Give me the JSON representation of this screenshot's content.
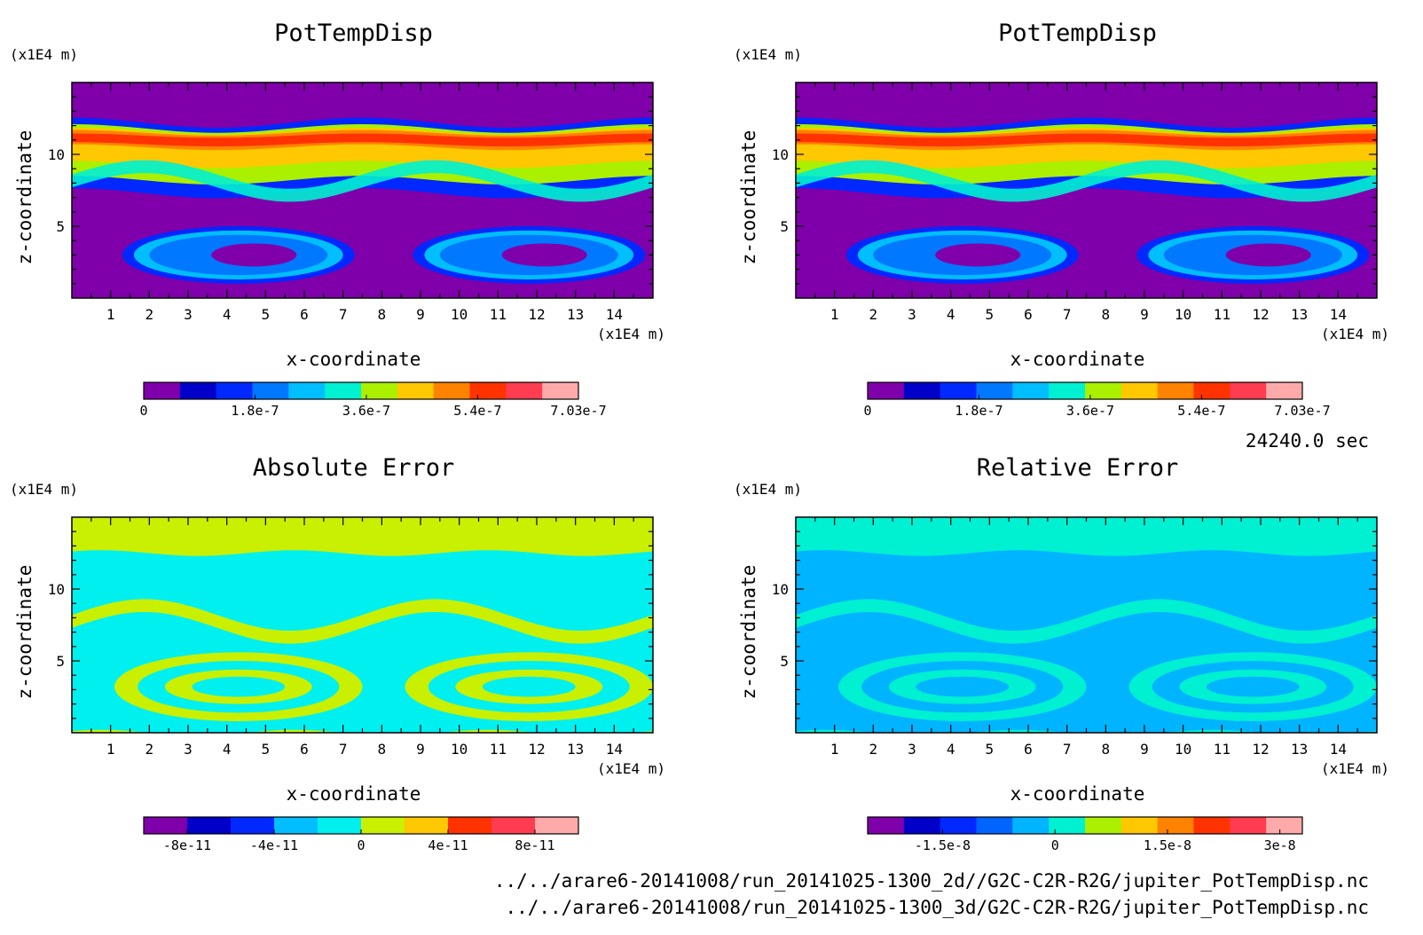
{
  "time_label": "24240.0 sec",
  "files": [
    "../../arare6-20141008/run_20141025-1300_2d//G2C-C2R-R2G/jupiter_PotTempDisp.nc",
    "../../arare6-20141008/run_20141025-1300_3d/G2C-C2R-R2G/jupiter_PotTempDisp.nc"
  ],
  "colors": {
    "potential_temperature_scale": [
      "#7f00aa",
      "#0000c8",
      "#0028ff",
      "#0078ff",
      "#00beff",
      "#00f0d2",
      "#aaf000",
      "#ffc800",
      "#ff8200",
      "#ff3200",
      "#ff3c50",
      "#ffaaaa"
    ],
    "absolute_error_scale": [
      "#7f00aa",
      "#0000c8",
      "#0028ff",
      "#0078ff",
      "#00beff",
      "#00f0f0",
      "#c8f000",
      "#ffc800",
      "#ff8200",
      "#ff3200",
      "#ff3c50",
      "#ffaaaa"
    ],
    "relative_error_scale": [
      "#7f00aa",
      "#0000c8",
      "#0028ff",
      "#0064ff",
      "#00b4ff",
      "#00f0d2",
      "#aaf000",
      "#ffc800",
      "#ff8200",
      "#ff3200",
      "#ff3c50",
      "#ffaaaa"
    ]
  },
  "chart_data": [
    {
      "type": "heatmap",
      "title": "PotTempDisp",
      "xlabel": "x-coordinate",
      "ylabel": "z-coordinate",
      "x_unit": "(x1E4 m)",
      "y_unit": "(x1E4 m)",
      "xlim": [
        0,
        15
      ],
      "ylim": [
        0,
        15
      ],
      "x_ticks": [
        1,
        2,
        3,
        4,
        5,
        6,
        7,
        8,
        9,
        10,
        11,
        12,
        13,
        14
      ],
      "y_ticks": [
        5,
        10
      ],
      "colorbar": {
        "min": 0,
        "max": 7.03e-07,
        "levels": 12,
        "tick_labels": [
          "0",
          "1.8e-7",
          "3.6e-7",
          "5.4e-7",
          "7.03e-7"
        ],
        "tick_values": [
          0,
          1.8e-07,
          3.6e-07,
          5.4e-07,
          7.03e-07
        ]
      }
    },
    {
      "type": "heatmap",
      "title": "PotTempDisp",
      "xlabel": "x-coordinate",
      "ylabel": "z-coordinate",
      "x_unit": "(x1E4 m)",
      "y_unit": "(x1E4 m)",
      "xlim": [
        0,
        15
      ],
      "ylim": [
        0,
        15
      ],
      "x_ticks": [
        1,
        2,
        3,
        4,
        5,
        6,
        7,
        8,
        9,
        10,
        11,
        12,
        13,
        14
      ],
      "y_ticks": [
        5,
        10
      ],
      "colorbar": {
        "min": 0,
        "max": 7.03e-07,
        "levels": 12,
        "tick_labels": [
          "0",
          "1.8e-7",
          "3.6e-7",
          "5.4e-7",
          "7.03e-7"
        ],
        "tick_values": [
          0,
          1.8e-07,
          3.6e-07,
          5.4e-07,
          7.03e-07
        ]
      }
    },
    {
      "type": "heatmap",
      "title": "Absolute Error",
      "xlabel": "x-coordinate",
      "ylabel": "z-coordinate",
      "x_unit": "(x1E4 m)",
      "y_unit": "(x1E4 m)",
      "xlim": [
        0,
        15
      ],
      "ylim": [
        0,
        15
      ],
      "x_ticks": [
        1,
        2,
        3,
        4,
        5,
        6,
        7,
        8,
        9,
        10,
        11,
        12,
        13,
        14
      ],
      "y_ticks": [
        5,
        10
      ],
      "colorbar": {
        "min": -1e-10,
        "max": 1e-10,
        "levels": 10,
        "tick_labels": [
          "-8e-11",
          "-4e-11",
          "0",
          "4e-11",
          "8e-11"
        ],
        "tick_values": [
          -8e-11,
          -4e-11,
          0,
          4e-11,
          8e-11
        ]
      }
    },
    {
      "type": "heatmap",
      "title": "Relative Error",
      "xlabel": "x-coordinate",
      "ylabel": "z-coordinate",
      "x_unit": "(x1E4 m)",
      "y_unit": "(x1E4 m)",
      "xlim": [
        0,
        15
      ],
      "ylim": [
        0,
        15
      ],
      "x_ticks": [
        1,
        2,
        3,
        4,
        5,
        6,
        7,
        8,
        9,
        10,
        11,
        12,
        13,
        14
      ],
      "y_ticks": [
        5,
        10
      ],
      "colorbar": {
        "min": -2.5e-08,
        "max": 3.3e-08,
        "levels": 12,
        "tick_labels": [
          "-1.5e-8",
          "0",
          "1.5e-8",
          "3e-8"
        ],
        "tick_values": [
          -1.5e-08,
          0,
          1.5e-08,
          3e-08
        ]
      }
    }
  ]
}
